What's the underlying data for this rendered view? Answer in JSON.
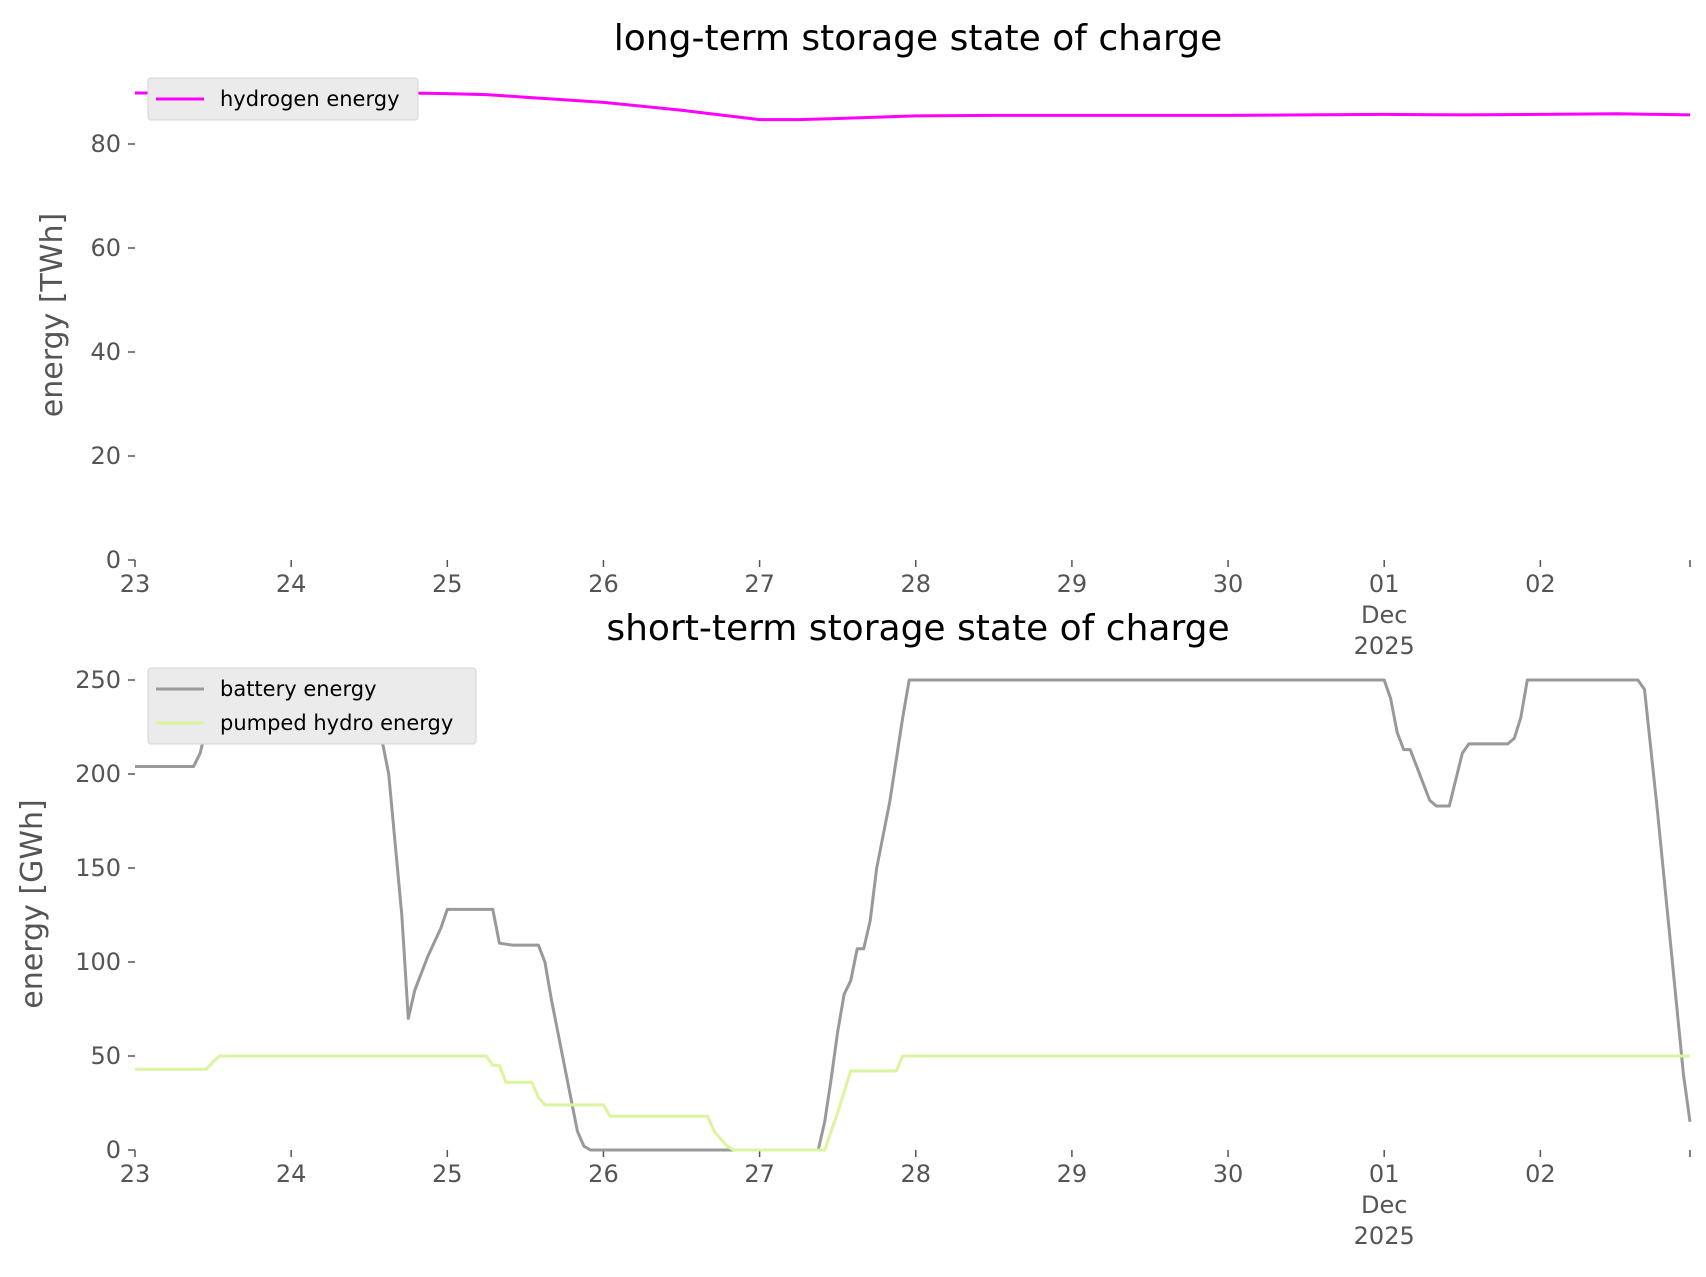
{
  "chart_data": [
    {
      "type": "line",
      "title": "long-term storage state of charge",
      "xlabel": "",
      "ylabel": "energy [TWh]",
      "ylim": [
        0,
        90
      ],
      "yticks": [
        0,
        20,
        40,
        60,
        80
      ],
      "xlim": [
        "2025-11-23 00:00",
        "2025-12-02 23:00"
      ],
      "xticks": [
        {
          "at": "2025-11-23",
          "lines": [
            "23"
          ]
        },
        {
          "at": "2025-11-24",
          "lines": [
            "24"
          ]
        },
        {
          "at": "2025-11-25",
          "lines": [
            "25"
          ]
        },
        {
          "at": "2025-11-26",
          "lines": [
            "26"
          ]
        },
        {
          "at": "2025-11-27",
          "lines": [
            "27"
          ]
        },
        {
          "at": "2025-11-28",
          "lines": [
            "28"
          ]
        },
        {
          "at": "2025-11-29",
          "lines": [
            "29"
          ]
        },
        {
          "at": "2025-11-30",
          "lines": [
            "30"
          ]
        },
        {
          "at": "2025-12-01",
          "lines": [
            "01",
            "Dec",
            "2025"
          ]
        },
        {
          "at": "2025-12-02",
          "lines": [
            "02"
          ]
        },
        {
          "at": "2025-12-02 23:00",
          "lines": []
        }
      ],
      "grid": false,
      "legend": "upper-left",
      "series": [
        {
          "name": "hydrogen energy",
          "color": "#ff00ff",
          "points": [
            [
              "2025-11-23 00:00",
              89.8
            ],
            [
              "2025-11-23 12:00",
              89.8
            ],
            [
              "2025-11-24 00:00",
              89.9
            ],
            [
              "2025-11-24 12:00",
              89.9
            ],
            [
              "2025-11-25 00:00",
              89.7
            ],
            [
              "2025-11-25 06:00",
              89.5
            ],
            [
              "2025-11-25 12:00",
              89.0
            ],
            [
              "2025-11-26 00:00",
              88.0
            ],
            [
              "2025-11-26 12:00",
              86.5
            ],
            [
              "2025-11-27 00:00",
              84.7
            ],
            [
              "2025-11-27 06:00",
              84.7
            ],
            [
              "2025-11-27 12:00",
              84.9
            ],
            [
              "2025-11-28 00:00",
              85.4
            ],
            [
              "2025-11-28 12:00",
              85.5
            ],
            [
              "2025-11-29 00:00",
              85.5
            ],
            [
              "2025-11-30 00:00",
              85.5
            ],
            [
              "2025-11-30 12:00",
              85.6
            ],
            [
              "2025-12-01 00:00",
              85.7
            ],
            [
              "2025-12-01 12:00",
              85.6
            ],
            [
              "2025-12-02 00:00",
              85.7
            ],
            [
              "2025-12-02 12:00",
              85.8
            ],
            [
              "2025-12-02 23:00",
              85.6
            ]
          ]
        }
      ]
    },
    {
      "type": "line",
      "title": "short-term storage state of charge",
      "xlabel": "",
      "ylabel": "energy [GWh]",
      "ylim": [
        0,
        250
      ],
      "yticks": [
        0,
        50,
        100,
        150,
        200,
        250
      ],
      "xlim": [
        "2025-11-23 00:00",
        "2025-12-02 23:00"
      ],
      "xticks": [
        {
          "at": "2025-11-23",
          "lines": [
            "23"
          ]
        },
        {
          "at": "2025-11-24",
          "lines": [
            "24"
          ]
        },
        {
          "at": "2025-11-25",
          "lines": [
            "25"
          ]
        },
        {
          "at": "2025-11-26",
          "lines": [
            "26"
          ]
        },
        {
          "at": "2025-11-27",
          "lines": [
            "27"
          ]
        },
        {
          "at": "2025-11-28",
          "lines": [
            "28"
          ]
        },
        {
          "at": "2025-11-29",
          "lines": [
            "29"
          ]
        },
        {
          "at": "2025-11-30",
          "lines": [
            "30"
          ]
        },
        {
          "at": "2025-12-01",
          "lines": [
            "01",
            "Dec",
            "2025"
          ]
        },
        {
          "at": "2025-12-02",
          "lines": [
            "02"
          ]
        },
        {
          "at": "2025-12-02 23:00",
          "lines": []
        }
      ],
      "grid": false,
      "legend": "upper-left",
      "series": [
        {
          "name": "battery energy",
          "color": "#999999",
          "points": [
            [
              "2025-11-23 00:00",
              204
            ],
            [
              "2025-11-23 09:00",
              204
            ],
            [
              "2025-11-23 10:00",
              211
            ],
            [
              "2025-11-23 11:00",
              225
            ],
            [
              "2025-11-23 12:00",
              240
            ],
            [
              "2025-11-23 13:00",
              250
            ],
            [
              "2025-11-24 11:00",
              250
            ],
            [
              "2025-11-24 13:00",
              235
            ],
            [
              "2025-11-24 15:00",
              200
            ],
            [
              "2025-11-24 17:00",
              125
            ],
            [
              "2025-11-24 18:00",
              70
            ],
            [
              "2025-11-24 19:00",
              85
            ],
            [
              "2025-11-24 21:00",
              103
            ],
            [
              "2025-11-24 23:00",
              118
            ],
            [
              "2025-11-25 00:00",
              128
            ],
            [
              "2025-11-25 07:00",
              128
            ],
            [
              "2025-11-25 08:00",
              110
            ],
            [
              "2025-11-25 10:00",
              109
            ],
            [
              "2025-11-25 14:00",
              109
            ],
            [
              "2025-11-25 15:00",
              100
            ],
            [
              "2025-11-25 16:00",
              80
            ],
            [
              "2025-11-25 18:00",
              45
            ],
            [
              "2025-11-25 20:00",
              10
            ],
            [
              "2025-11-25 21:00",
              2
            ],
            [
              "2025-11-25 22:00",
              0
            ],
            [
              "2025-11-27 09:00",
              0
            ],
            [
              "2025-11-27 10:00",
              15
            ],
            [
              "2025-11-27 11:00",
              38
            ],
            [
              "2025-11-27 12:00",
              63
            ],
            [
              "2025-11-27 13:00",
              83
            ],
            [
              "2025-11-27 14:00",
              90
            ],
            [
              "2025-11-27 15:00",
              107
            ],
            [
              "2025-11-27 16:00",
              107
            ],
            [
              "2025-11-27 17:00",
              122
            ],
            [
              "2025-11-27 18:00",
              150
            ],
            [
              "2025-11-27 20:00",
              185
            ],
            [
              "2025-11-27 22:00",
              230
            ],
            [
              "2025-11-27 23:00",
              250
            ],
            [
              "2025-12-01 00:00",
              250
            ],
            [
              "2025-12-01 01:00",
              240
            ],
            [
              "2025-12-01 02:00",
              222
            ],
            [
              "2025-12-01 03:00",
              213
            ],
            [
              "2025-12-01 04:00",
              213
            ],
            [
              "2025-12-01 06:00",
              195
            ],
            [
              "2025-12-01 07:00",
              186
            ],
            [
              "2025-12-01 08:00",
              183
            ],
            [
              "2025-12-01 10:00",
              183
            ],
            [
              "2025-12-01 11:00",
              197
            ],
            [
              "2025-12-01 12:00",
              211
            ],
            [
              "2025-12-01 13:00",
              216
            ],
            [
              "2025-12-01 19:00",
              216
            ],
            [
              "2025-12-01 20:00",
              219
            ],
            [
              "2025-12-01 21:00",
              230
            ],
            [
              "2025-12-01 22:00",
              250
            ],
            [
              "2025-12-02 15:00",
              250
            ],
            [
              "2025-12-02 16:00",
              245
            ],
            [
              "2025-12-02 18:00",
              180
            ],
            [
              "2025-12-02 20:00",
              110
            ],
            [
              "2025-12-02 22:00",
              40
            ],
            [
              "2025-12-02 23:00",
              15
            ]
          ]
        },
        {
          "name": "pumped hydro energy",
          "color": "#d9f5a0",
          "points": [
            [
              "2025-11-23 00:00",
              43
            ],
            [
              "2025-11-23 11:00",
              43
            ],
            [
              "2025-11-23 12:00",
              47
            ],
            [
              "2025-11-23 13:00",
              50
            ],
            [
              "2025-11-25 06:00",
              50
            ],
            [
              "2025-11-25 07:00",
              45
            ],
            [
              "2025-11-25 08:00",
              45
            ],
            [
              "2025-11-25 09:00",
              36
            ],
            [
              "2025-11-25 13:00",
              36
            ],
            [
              "2025-11-25 14:00",
              28
            ],
            [
              "2025-11-25 15:00",
              24
            ],
            [
              "2025-11-26 00:00",
              24
            ],
            [
              "2025-11-26 01:00",
              18
            ],
            [
              "2025-11-26 16:00",
              18
            ],
            [
              "2025-11-26 17:00",
              10
            ],
            [
              "2025-11-26 19:00",
              2
            ],
            [
              "2025-11-26 20:00",
              0
            ],
            [
              "2025-11-27 10:00",
              0
            ],
            [
              "2025-11-27 11:00",
              10
            ],
            [
              "2025-11-27 12:00",
              20
            ],
            [
              "2025-11-27 14:00",
              42
            ],
            [
              "2025-11-27 21:00",
              42
            ],
            [
              "2025-11-27 22:00",
              50
            ],
            [
              "2025-12-02 23:00",
              50
            ]
          ]
        }
      ]
    }
  ]
}
